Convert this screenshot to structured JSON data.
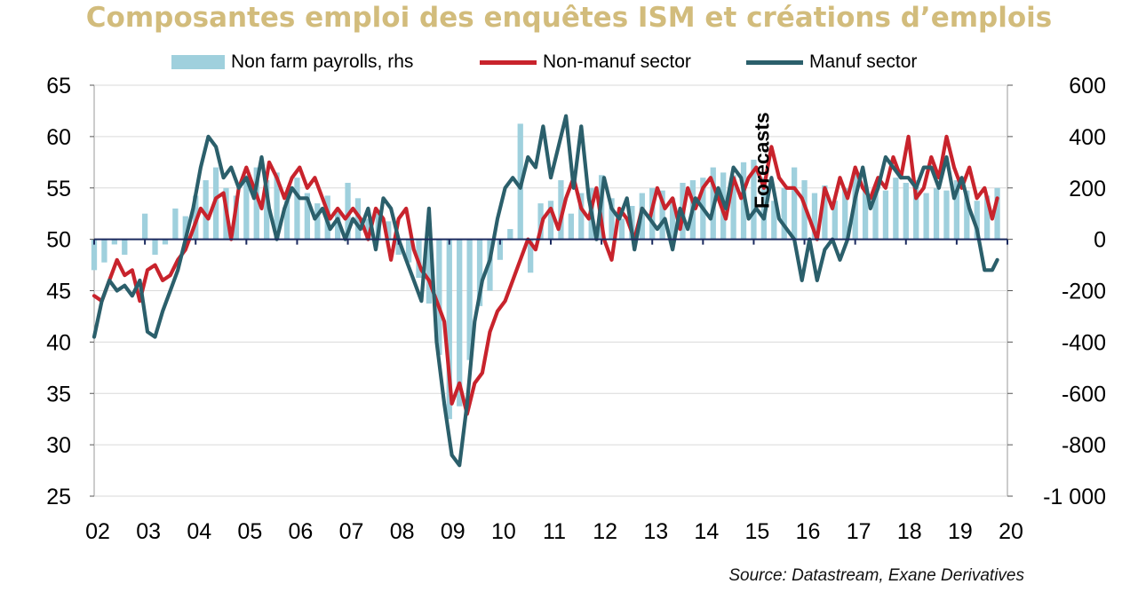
{
  "chart_data": {
    "type": "line",
    "title": "Composantes emploi des enquêtes ISM et créations d’emplois",
    "x_ticks": [
      "02",
      "03",
      "04",
      "05",
      "06",
      "07",
      "08",
      "09",
      "10",
      "11",
      "12",
      "13",
      "14",
      "15",
      "16",
      "17",
      "18",
      "19",
      "20"
    ],
    "x_range": [
      2002.0,
      2020.0
    ],
    "y_left": {
      "range": [
        25,
        65
      ],
      "ticks": [
        "65",
        "60",
        "55",
        "50",
        "45",
        "40",
        "35",
        "30",
        "25"
      ],
      "tick_values": [
        65,
        60,
        55,
        50,
        45,
        40,
        35,
        30,
        25
      ]
    },
    "y_right": {
      "range": [
        -1000,
        600
      ],
      "ticks": [
        "600",
        "400",
        "200",
        "0",
        "-200",
        "-400",
        "-600",
        "-800",
        "-1 000"
      ],
      "tick_values": [
        600,
        400,
        200,
        0,
        -200,
        -400,
        -600,
        -800,
        -1000
      ]
    },
    "grid": true,
    "legend_position": "top",
    "annotation": "Forecasts",
    "annotation_x": 2015.3,
    "source": "Source: Datastream,  Exane Derivatives",
    "colors": {
      "bars": "#9fd0dd",
      "non_manuf": "#c8232c",
      "manuf": "#2b5f6b",
      "title": "#d2bc7c",
      "zero_line": "#1b2a5e"
    },
    "series": [
      {
        "name": "Non farm payrolls, rhs",
        "type": "bar",
        "axis": "right",
        "color": "#9fd0dd",
        "x": [
          2002.0,
          2002.2,
          2002.4,
          2002.6,
          2002.8,
          2003.0,
          2003.2,
          2003.4,
          2003.6,
          2003.8,
          2004.0,
          2004.2,
          2004.4,
          2004.6,
          2004.8,
          2005.0,
          2005.2,
          2005.4,
          2005.6,
          2005.8,
          2006.0,
          2006.2,
          2006.4,
          2006.6,
          2006.8,
          2007.0,
          2007.2,
          2007.4,
          2007.6,
          2007.8,
          2008.0,
          2008.2,
          2008.4,
          2008.6,
          2008.8,
          2009.0,
          2009.2,
          2009.4,
          2009.6,
          2009.8,
          2010.0,
          2010.2,
          2010.4,
          2010.6,
          2010.8,
          2011.0,
          2011.2,
          2011.4,
          2011.6,
          2011.8,
          2012.0,
          2012.2,
          2012.4,
          2012.6,
          2012.8,
          2013.0,
          2013.2,
          2013.4,
          2013.6,
          2013.8,
          2014.0,
          2014.2,
          2014.4,
          2014.6,
          2014.8,
          2015.0,
          2015.2,
          2015.4,
          2015.6,
          2015.8,
          2016.0,
          2016.2,
          2016.4,
          2016.6,
          2016.8,
          2017.0,
          2017.2,
          2017.4,
          2017.6,
          2017.8,
          2018.0,
          2018.2,
          2018.4,
          2018.6,
          2018.8,
          2019.0,
          2019.2,
          2019.4,
          2019.6,
          2019.8
        ],
        "values": [
          -120,
          -90,
          -20,
          -60,
          0,
          100,
          -60,
          -20,
          120,
          90,
          170,
          230,
          280,
          200,
          170,
          250,
          280,
          230,
          260,
          150,
          240,
          180,
          140,
          170,
          110,
          220,
          160,
          80,
          100,
          70,
          -60,
          -90,
          -150,
          -250,
          -450,
          -700,
          -650,
          -470,
          -260,
          -200,
          -80,
          40,
          450,
          -130,
          140,
          150,
          230,
          100,
          180,
          200,
          250,
          160,
          80,
          130,
          180,
          200,
          190,
          160,
          220,
          230,
          240,
          280,
          260,
          250,
          300,
          310,
          240,
          150,
          200,
          280,
          230,
          180,
          210,
          150,
          200,
          260,
          210,
          180,
          190,
          240,
          220,
          230,
          180,
          200,
          190,
          230,
          190,
          150,
          170,
          200
        ]
      },
      {
        "name": "Non-manuf sector",
        "type": "line",
        "axis": "left",
        "color": "#c8232c",
        "x": [
          2002.0,
          2002.15,
          2002.3,
          2002.45,
          2002.6,
          2002.75,
          2002.9,
          2003.05,
          2003.2,
          2003.35,
          2003.5,
          2003.65,
          2003.8,
          2003.95,
          2004.1,
          2004.25,
          2004.4,
          2004.55,
          2004.7,
          2004.85,
          2005.0,
          2005.15,
          2005.3,
          2005.45,
          2005.6,
          2005.75,
          2005.9,
          2006.05,
          2006.2,
          2006.35,
          2006.5,
          2006.65,
          2006.8,
          2006.95,
          2007.1,
          2007.25,
          2007.4,
          2007.55,
          2007.7,
          2007.85,
          2008.0,
          2008.15,
          2008.3,
          2008.45,
          2008.6,
          2008.75,
          2008.9,
          2009.05,
          2009.2,
          2009.35,
          2009.5,
          2009.65,
          2009.8,
          2009.95,
          2010.1,
          2010.25,
          2010.4,
          2010.55,
          2010.7,
          2010.85,
          2011.0,
          2011.15,
          2011.3,
          2011.45,
          2011.6,
          2011.75,
          2011.9,
          2012.05,
          2012.2,
          2012.35,
          2012.5,
          2012.65,
          2012.8,
          2012.95,
          2013.1,
          2013.25,
          2013.4,
          2013.55,
          2013.7,
          2013.85,
          2014.0,
          2014.15,
          2014.3,
          2014.45,
          2014.6,
          2014.75,
          2014.9,
          2015.05,
          2015.2,
          2015.35,
          2015.5,
          2015.65,
          2015.8,
          2015.95,
          2016.1,
          2016.25,
          2016.4,
          2016.55,
          2016.7,
          2016.85,
          2017.0,
          2017.15,
          2017.3,
          2017.45,
          2017.6,
          2017.75,
          2017.9,
          2018.05,
          2018.2,
          2018.35,
          2018.5,
          2018.65,
          2018.8,
          2018.95,
          2019.1,
          2019.25,
          2019.4,
          2019.55,
          2019.7,
          2019.8
        ],
        "values": [
          44.5,
          44,
          46,
          48,
          46.5,
          47,
          44,
          47,
          47.5,
          46,
          46.5,
          48,
          49,
          51,
          53,
          52,
          54,
          54.5,
          50,
          55,
          57,
          55,
          53,
          57.5,
          56,
          54,
          56,
          57,
          55,
          56,
          54,
          52,
          53,
          52,
          53,
          52,
          50,
          53,
          52,
          48,
          52,
          53,
          49,
          47,
          46,
          44,
          42,
          34,
          36,
          33,
          36,
          37,
          41,
          43,
          44,
          46,
          48,
          50,
          49,
          52,
          53,
          51,
          54,
          56,
          53,
          52,
          55,
          50,
          48,
          53,
          52,
          50,
          53,
          52,
          55,
          53,
          54,
          51,
          55,
          53,
          55,
          56,
          54,
          52,
          56,
          54,
          56,
          57,
          55,
          59,
          56,
          55,
          55,
          54,
          52,
          50,
          55,
          53,
          56,
          54,
          57,
          55,
          54,
          56,
          55,
          58,
          56,
          60,
          54,
          55,
          58,
          56,
          60,
          57,
          55,
          57,
          54,
          55,
          52,
          54
        ]
      },
      {
        "name": "Manuf sector",
        "type": "line",
        "axis": "left",
        "color": "#2b5f6b",
        "x": [
          2002.0,
          2002.15,
          2002.3,
          2002.45,
          2002.6,
          2002.75,
          2002.9,
          2003.05,
          2003.2,
          2003.35,
          2003.5,
          2003.65,
          2003.8,
          2003.95,
          2004.1,
          2004.25,
          2004.4,
          2004.55,
          2004.7,
          2004.85,
          2005.0,
          2005.15,
          2005.3,
          2005.45,
          2005.6,
          2005.75,
          2005.9,
          2006.05,
          2006.2,
          2006.35,
          2006.5,
          2006.65,
          2006.8,
          2006.95,
          2007.1,
          2007.25,
          2007.4,
          2007.55,
          2007.7,
          2007.85,
          2008.0,
          2008.15,
          2008.3,
          2008.45,
          2008.6,
          2008.75,
          2008.9,
          2009.05,
          2009.2,
          2009.35,
          2009.5,
          2009.65,
          2009.8,
          2009.95,
          2010.1,
          2010.25,
          2010.4,
          2010.55,
          2010.7,
          2010.85,
          2011.0,
          2011.15,
          2011.3,
          2011.45,
          2011.6,
          2011.75,
          2011.9,
          2012.05,
          2012.2,
          2012.35,
          2012.5,
          2012.65,
          2012.8,
          2012.95,
          2013.1,
          2013.25,
          2013.4,
          2013.55,
          2013.7,
          2013.85,
          2014.0,
          2014.15,
          2014.3,
          2014.45,
          2014.6,
          2014.75,
          2014.9,
          2015.05,
          2015.2,
          2015.35,
          2015.5,
          2015.65,
          2015.8,
          2015.95,
          2016.1,
          2016.25,
          2016.4,
          2016.55,
          2016.7,
          2016.85,
          2017.0,
          2017.15,
          2017.3,
          2017.45,
          2017.6,
          2017.75,
          2017.9,
          2018.05,
          2018.2,
          2018.35,
          2018.5,
          2018.65,
          2018.8,
          2018.95,
          2019.1,
          2019.25,
          2019.4,
          2019.55,
          2019.7,
          2019.8
        ],
        "values": [
          40.5,
          44,
          46,
          45,
          45.5,
          44.5,
          46,
          41,
          40.5,
          43,
          45,
          47,
          50,
          53,
          57,
          60,
          59,
          56,
          57,
          55,
          56,
          54,
          58,
          53,
          50,
          53,
          55,
          54,
          54,
          52,
          53,
          51,
          52,
          50,
          52,
          51,
          53,
          49,
          54,
          53,
          50,
          48,
          46,
          44,
          53,
          40,
          34,
          29,
          28,
          34,
          42,
          46,
          48,
          52,
          55,
          56,
          55,
          58,
          57,
          61,
          56,
          59,
          62,
          55,
          61,
          54,
          50,
          56,
          53,
          52,
          54,
          49,
          53,
          52,
          51,
          52,
          49,
          53,
          51,
          54,
          53,
          52,
          55,
          53,
          57,
          56,
          52,
          53,
          52,
          56,
          52,
          51,
          50,
          46,
          50,
          46,
          49,
          50,
          48,
          50,
          54,
          57,
          53,
          55,
          58,
          57,
          56,
          56,
          55,
          57,
          57,
          55,
          58,
          54,
          56,
          53,
          51,
          47,
          47,
          48
        ]
      }
    ]
  }
}
